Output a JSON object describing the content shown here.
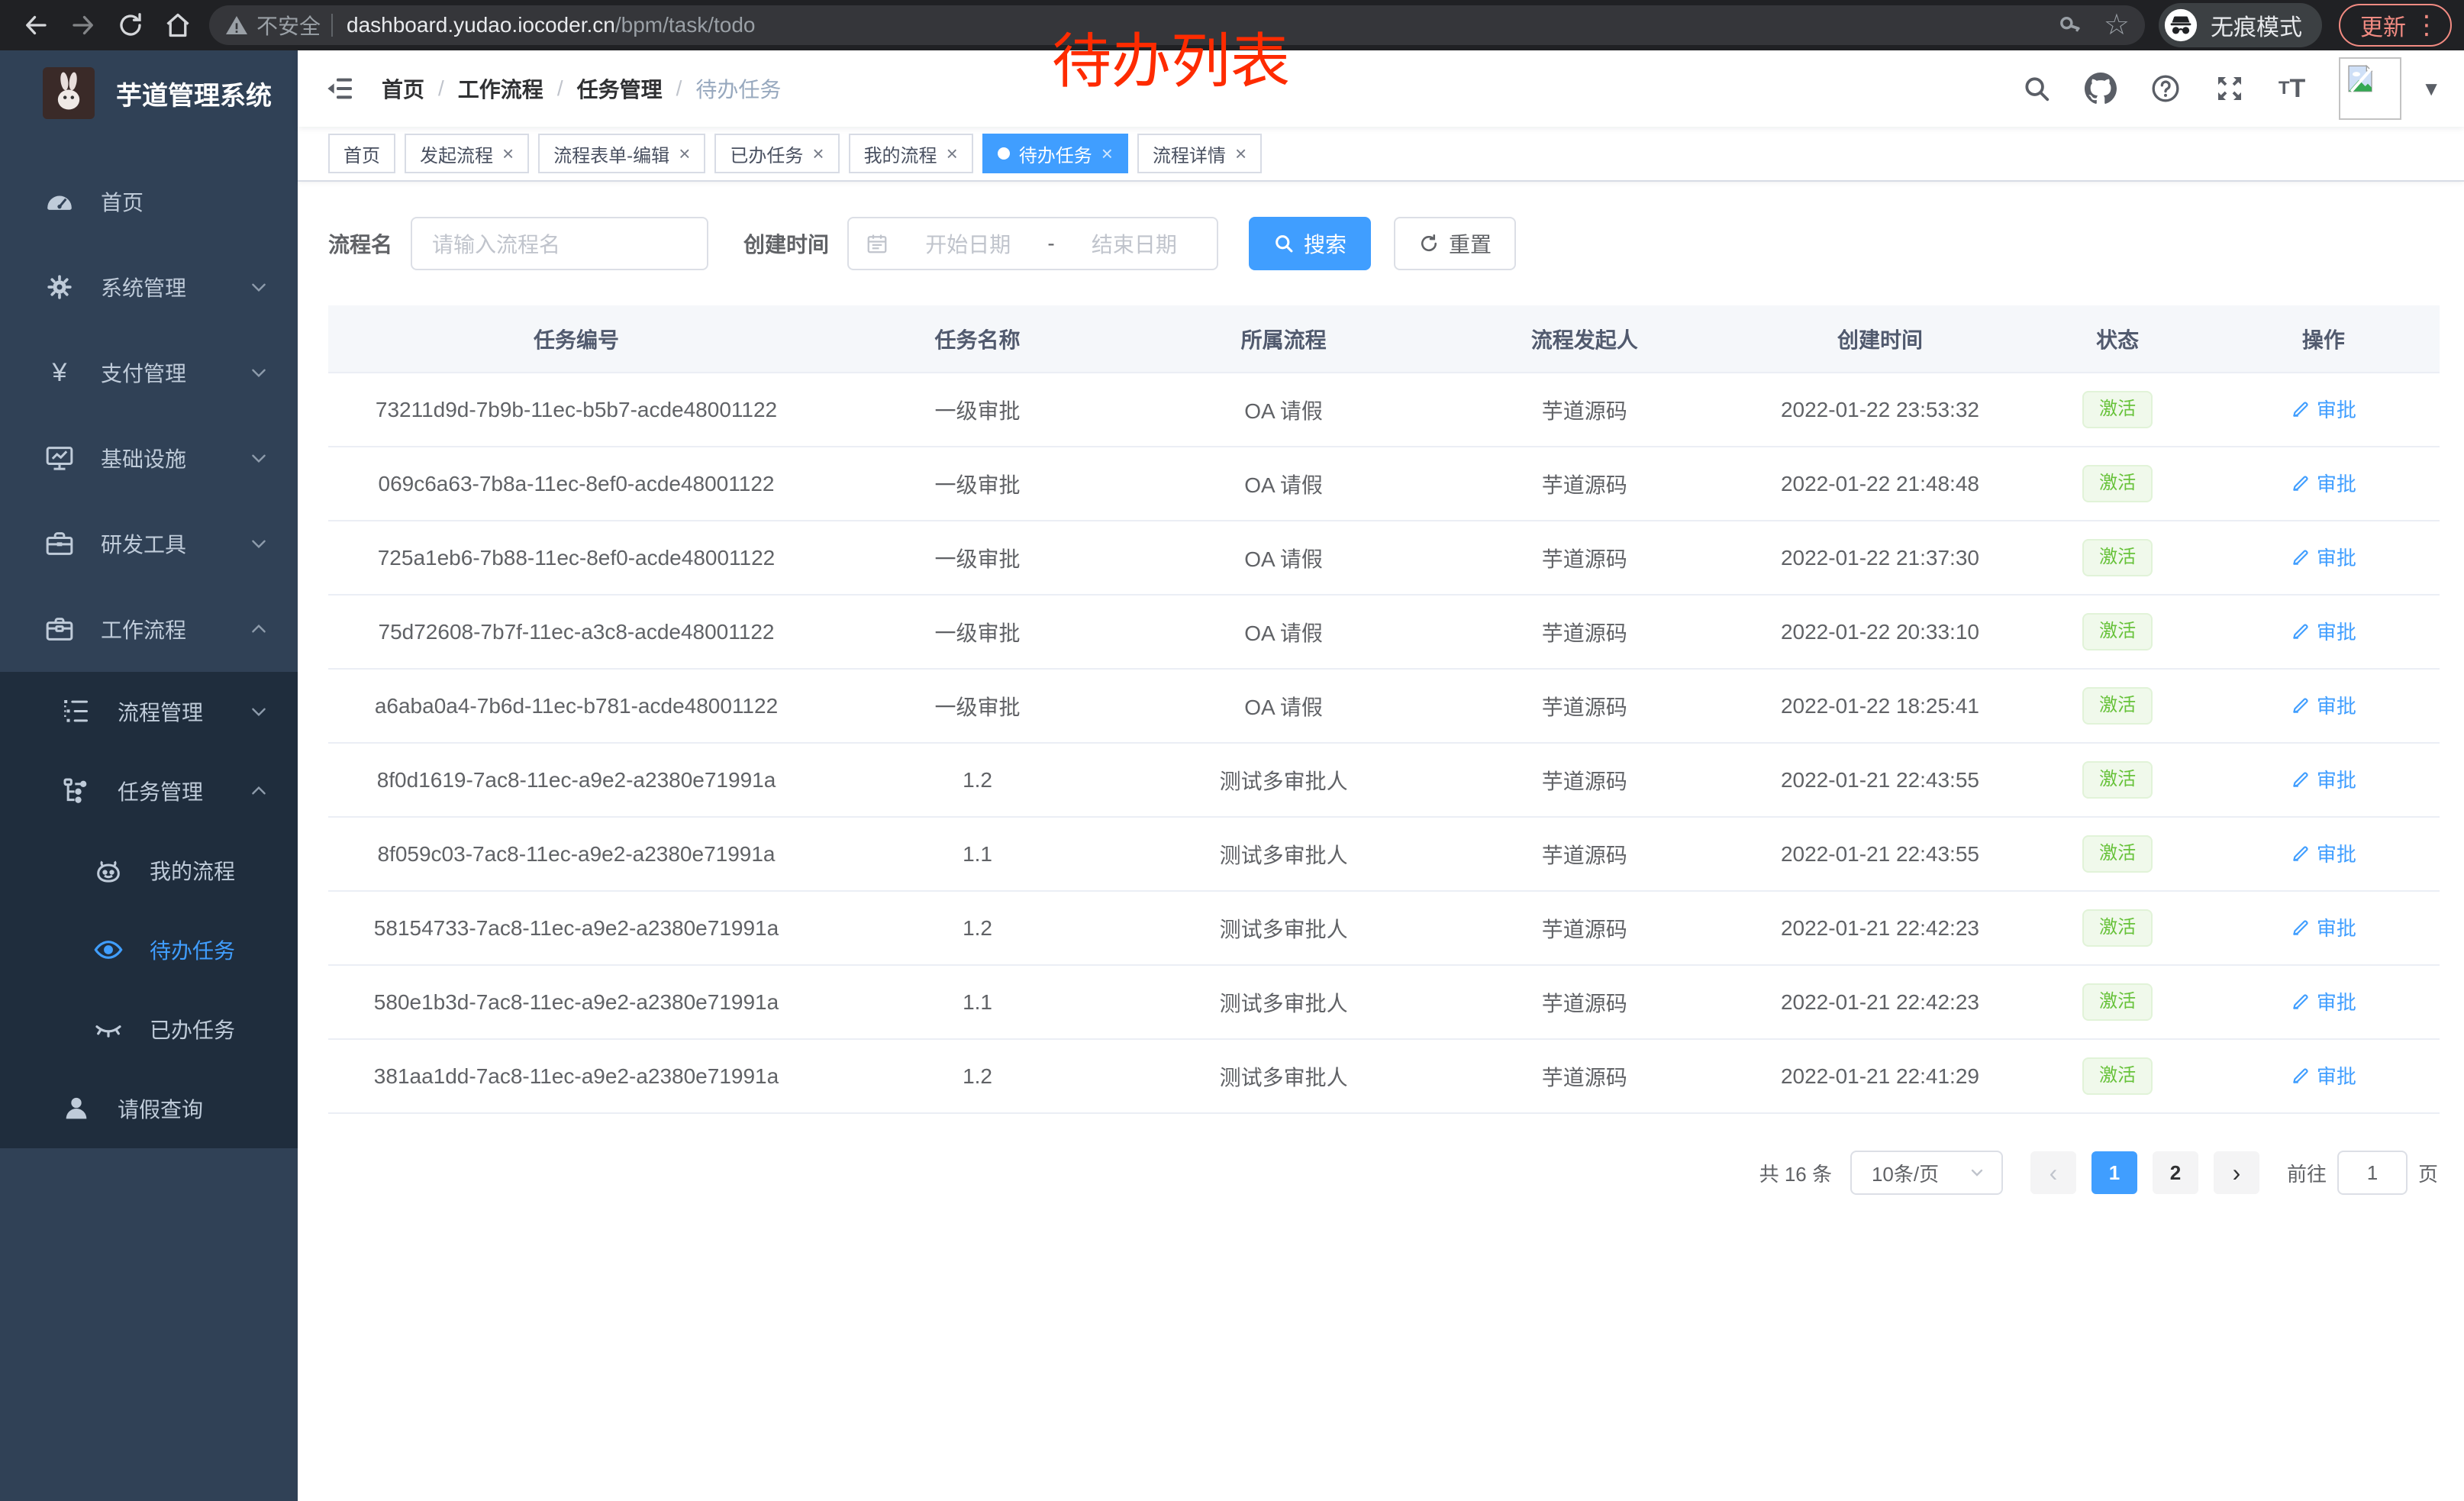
{
  "browser": {
    "security_label": "不安全",
    "url_host": "dashboard.yudao.iocoder.cn",
    "url_path": "/bpm/task/todo",
    "incognito_label": "无痕模式",
    "update_label": "更新"
  },
  "annotation": {
    "text": "待办列表",
    "color": "#fe2b00"
  },
  "sidebar": {
    "title": "芋道管理系统",
    "menu": [
      {
        "label": "首页",
        "icon": "dashboard-icon",
        "level": 1,
        "chevron": "",
        "dark": false,
        "active": false
      },
      {
        "label": "系统管理",
        "icon": "gear-icon",
        "level": 1,
        "chevron": "down",
        "dark": false,
        "active": false
      },
      {
        "label": "支付管理",
        "icon": "yen-icon",
        "level": 1,
        "chevron": "down",
        "dark": false,
        "active": false
      },
      {
        "label": "基础设施",
        "icon": "monitor-icon",
        "level": 1,
        "chevron": "down",
        "dark": false,
        "active": false
      },
      {
        "label": "研发工具",
        "icon": "toolbox-icon",
        "level": 1,
        "chevron": "down",
        "dark": false,
        "active": false
      },
      {
        "label": "工作流程",
        "icon": "briefcase-icon",
        "level": 1,
        "chevron": "up",
        "dark": false,
        "active": false
      },
      {
        "label": "流程管理",
        "icon": "list-tree-icon",
        "level": 2,
        "chevron": "down",
        "dark": true,
        "active": false
      },
      {
        "label": "任务管理",
        "icon": "org-tree-icon",
        "level": 2,
        "chevron": "up",
        "dark": true,
        "active": false
      },
      {
        "label": "我的流程",
        "icon": "robot-icon",
        "level": 3,
        "chevron": "",
        "dark": true,
        "active": false
      },
      {
        "label": "待办任务",
        "icon": "eye-open-icon",
        "level": 3,
        "chevron": "",
        "dark": true,
        "active": true
      },
      {
        "label": "已办任务",
        "icon": "eye-closed-icon",
        "level": 3,
        "chevron": "",
        "dark": true,
        "active": false
      },
      {
        "label": "请假查询",
        "icon": "user-icon",
        "level": 2,
        "chevron": "",
        "dark": true,
        "active": false
      }
    ]
  },
  "header": {
    "breadcrumb": [
      "首页",
      "工作流程",
      "任务管理",
      "待办任务"
    ],
    "icons": [
      "search-icon",
      "github-icon",
      "help-icon",
      "fullscreen-icon",
      "font-size-icon",
      "avatar",
      "caret-down-icon"
    ]
  },
  "tabs": [
    {
      "label": "首页",
      "closable": false,
      "active": false
    },
    {
      "label": "发起流程",
      "closable": true,
      "active": false
    },
    {
      "label": "流程表单-编辑",
      "closable": true,
      "active": false
    },
    {
      "label": "已办任务",
      "closable": true,
      "active": false
    },
    {
      "label": "我的流程",
      "closable": true,
      "active": false
    },
    {
      "label": "待办任务",
      "closable": true,
      "active": true
    },
    {
      "label": "流程详情",
      "closable": true,
      "active": false
    }
  ],
  "filters": {
    "name_label": "流程名",
    "name_placeholder": "请输入流程名",
    "time_label": "创建时间",
    "start_placeholder": "开始日期",
    "range_separator": "-",
    "end_placeholder": "结束日期",
    "search_label": "搜索",
    "reset_label": "重置"
  },
  "table": {
    "columns": [
      "任务编号",
      "任务名称",
      "所属流程",
      "流程发起人",
      "创建时间",
      "状态",
      "操作"
    ],
    "col_widths": [
      "23.5%",
      "14.5%",
      "14.5%",
      "14%",
      "14%",
      "8.5%",
      "11%"
    ],
    "action_label": "审批",
    "rows": [
      {
        "id": "73211d9d-7b9b-11ec-b5b7-acde48001122",
        "name": "一级审批",
        "process": "OA 请假",
        "starter": "芋道源码",
        "created": "2022-01-22 23:53:32",
        "status": "激活"
      },
      {
        "id": "069c6a63-7b8a-11ec-8ef0-acde48001122",
        "name": "一级审批",
        "process": "OA 请假",
        "starter": "芋道源码",
        "created": "2022-01-22 21:48:48",
        "status": "激活"
      },
      {
        "id": "725a1eb6-7b88-11ec-8ef0-acde48001122",
        "name": "一级审批",
        "process": "OA 请假",
        "starter": "芋道源码",
        "created": "2022-01-22 21:37:30",
        "status": "激活"
      },
      {
        "id": "75d72608-7b7f-11ec-a3c8-acde48001122",
        "name": "一级审批",
        "process": "OA 请假",
        "starter": "芋道源码",
        "created": "2022-01-22 20:33:10",
        "status": "激活"
      },
      {
        "id": "a6aba0a4-7b6d-11ec-b781-acde48001122",
        "name": "一级审批",
        "process": "OA 请假",
        "starter": "芋道源码",
        "created": "2022-01-22 18:25:41",
        "status": "激活"
      },
      {
        "id": "8f0d1619-7ac8-11ec-a9e2-a2380e71991a",
        "name": "1.2",
        "process": "测试多审批人",
        "starter": "芋道源码",
        "created": "2022-01-21 22:43:55",
        "status": "激活"
      },
      {
        "id": "8f059c03-7ac8-11ec-a9e2-a2380e71991a",
        "name": "1.1",
        "process": "测试多审批人",
        "starter": "芋道源码",
        "created": "2022-01-21 22:43:55",
        "status": "激活"
      },
      {
        "id": "58154733-7ac8-11ec-a9e2-a2380e71991a",
        "name": "1.2",
        "process": "测试多审批人",
        "starter": "芋道源码",
        "created": "2022-01-21 22:42:23",
        "status": "激活"
      },
      {
        "id": "580e1b3d-7ac8-11ec-a9e2-a2380e71991a",
        "name": "1.1",
        "process": "测试多审批人",
        "starter": "芋道源码",
        "created": "2022-01-21 22:42:23",
        "status": "激活"
      },
      {
        "id": "381aa1dd-7ac8-11ec-a9e2-a2380e71991a",
        "name": "1.2",
        "process": "测试多审批人",
        "starter": "芋道源码",
        "created": "2022-01-21 22:41:29",
        "status": "激活"
      }
    ]
  },
  "pagination": {
    "total": "共 16 条",
    "page_size": "10条/页",
    "prev": "‹",
    "next": "›",
    "pages": [
      {
        "label": "1",
        "active": true
      },
      {
        "label": "2",
        "active": false
      }
    ],
    "goto_label": "前往",
    "goto_value": "1",
    "unit_label": "页"
  },
  "colors": {
    "accent": "#409eff",
    "success": "#67c23a",
    "annotation": "#fe2b00",
    "sidebar_bg": "#304156",
    "submenu_bg": "#1f2d3d"
  }
}
